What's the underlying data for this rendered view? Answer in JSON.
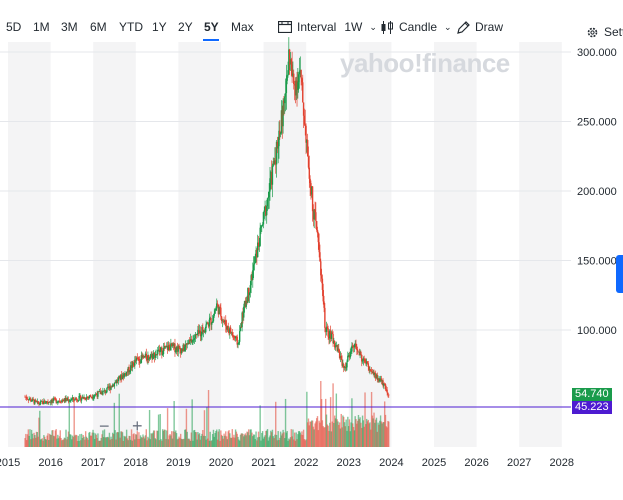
{
  "toolbar": {
    "ranges": [
      "5D",
      "1M",
      "3M",
      "6M",
      "YTD",
      "1Y",
      "2Y",
      "5Y",
      "Max"
    ],
    "active_range": "5Y",
    "interval_label": "Interval",
    "interval_value": "1W",
    "chart_type_label": "Candle",
    "draw_label": "Draw",
    "settings_label": "Sett"
  },
  "watermark": "yahoo!finance",
  "colors": {
    "up": "#1a9b4b",
    "down": "#e2412f",
    "price_line": "#4d1bd1",
    "accent": "#0f69ff"
  },
  "price_labels": {
    "last": "54.740",
    "line": "45.223"
  },
  "zoom_out": "−",
  "zoom_in": "+",
  "chart_data": {
    "type": "candlestick",
    "y_ticks": [
      "300.000",
      "250.000",
      "200.000",
      "150.000",
      "100.000"
    ],
    "y_tick_values": [
      300,
      250,
      200,
      150,
      100
    ],
    "x_ticks": [
      "2015",
      "2016",
      "2017",
      "2018",
      "2019",
      "2020",
      "2021",
      "2022",
      "2023",
      "2024",
      "2025",
      "2026",
      "2027",
      "2028"
    ],
    "x_tick_values": [
      2015,
      2016,
      2017,
      2018,
      2019,
      2020,
      2021,
      2022,
      2023,
      2024,
      2025,
      2026,
      2027,
      2028
    ],
    "xlim": [
      2015,
      2028.5
    ],
    "ylim": [
      42,
      310
    ],
    "grid": true,
    "last_price": 54.74,
    "horizontal_line": 45.223,
    "price_path": [
      [
        2015.4,
        52
      ],
      [
        2015.7,
        47
      ],
      [
        2016.0,
        49
      ],
      [
        2016.5,
        50
      ],
      [
        2016.9,
        52
      ],
      [
        2017.3,
        56
      ],
      [
        2017.5,
        62
      ],
      [
        2017.8,
        70
      ],
      [
        2018.0,
        78
      ],
      [
        2018.4,
        82
      ],
      [
        2018.8,
        88
      ],
      [
        2019.1,
        86
      ],
      [
        2019.5,
        98
      ],
      [
        2019.8,
        108
      ],
      [
        2019.9,
        118
      ],
      [
        2020.1,
        104
      ],
      [
        2020.2,
        100
      ],
      [
        2020.4,
        90
      ],
      [
        2020.5,
        110
      ],
      [
        2020.7,
        135
      ],
      [
        2020.9,
        165
      ],
      [
        2021.1,
        195
      ],
      [
        2021.3,
        230
      ],
      [
        2021.5,
        265
      ],
      [
        2021.6,
        300
      ],
      [
        2021.7,
        275
      ],
      [
        2021.85,
        285
      ],
      [
        2022.0,
        240
      ],
      [
        2022.15,
        190
      ],
      [
        2022.3,
        160
      ],
      [
        2022.45,
        100
      ],
      [
        2022.6,
        95
      ],
      [
        2022.75,
        85
      ],
      [
        2022.9,
        72
      ],
      [
        2023.1,
        90
      ],
      [
        2023.3,
        80
      ],
      [
        2023.5,
        72
      ],
      [
        2023.65,
        66
      ],
      [
        2023.8,
        62
      ],
      [
        2023.9,
        55
      ],
      [
        2023.95,
        54.74
      ]
    ]
  }
}
